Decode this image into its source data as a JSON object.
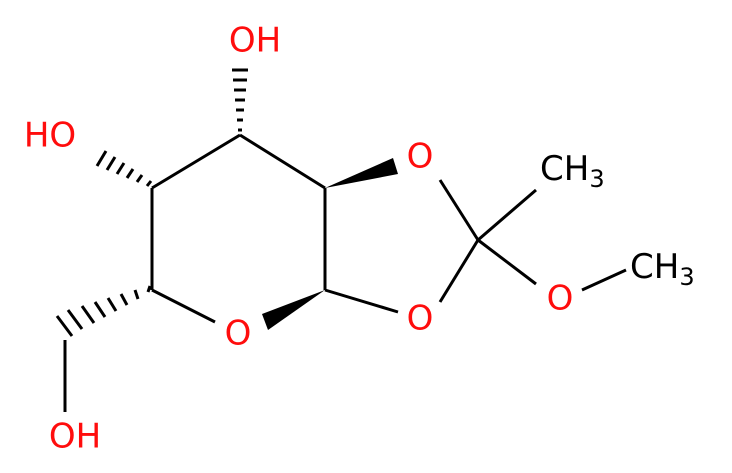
{
  "atoms": [
    {
      "label": "OH"
    },
    {
      "label": "HO"
    },
    {
      "label": "OH"
    },
    {
      "label": "O"
    },
    {
      "label": "O"
    },
    {
      "label": "O"
    },
    {
      "label": "CH",
      "sub": "3"
    },
    {
      "label": "O"
    },
    {
      "label": "CH",
      "sub": "3"
    }
  ]
}
